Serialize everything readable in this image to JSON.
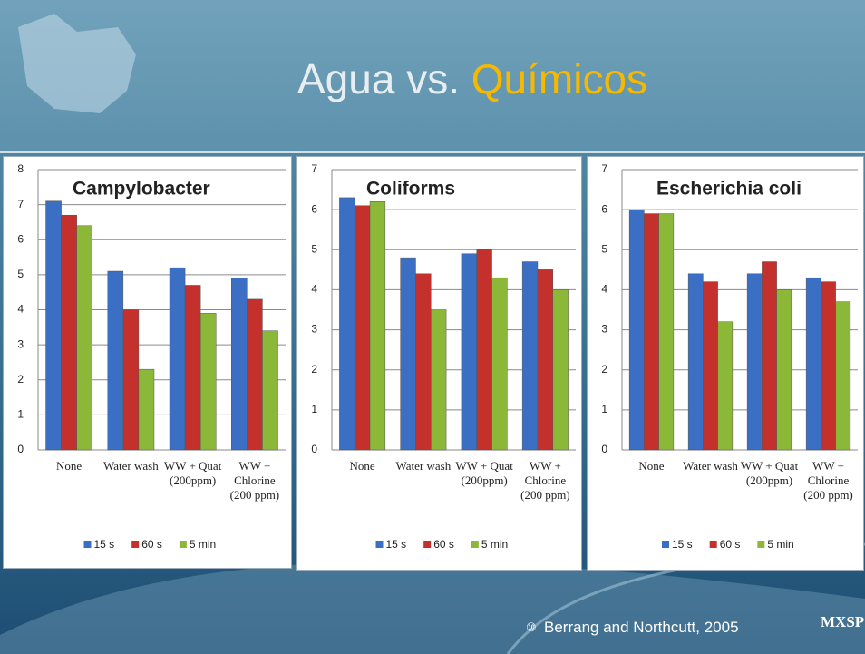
{
  "slide": {
    "title_part1": "Agua vs.",
    "title_part2": "Químicos",
    "bullet": "⑩",
    "footer": "Berrang and Northcutt, 2005",
    "logo": "MXSP"
  },
  "chart_data": [
    {
      "type": "bar",
      "title": "Campylobacter",
      "categories": [
        "None",
        "Water wash",
        "WW + Quat (200ppm)",
        "WW + Chlorine (200 ppm)"
      ],
      "series": [
        {
          "name": "15 s",
          "color": "#3a6fc4",
          "values": [
            7.1,
            5.1,
            5.2,
            4.9
          ]
        },
        {
          "name": "60 s",
          "color": "#c4302b",
          "values": [
            6.7,
            4.0,
            4.7,
            4.3
          ]
        },
        {
          "name": "5 min",
          "color": "#8cb83a",
          "values": [
            6.4,
            2.3,
            3.9,
            3.4
          ]
        }
      ],
      "ylim": [
        0,
        8
      ],
      "yticks": [
        0,
        1,
        2,
        3,
        4,
        5,
        6,
        7,
        8
      ],
      "grid": true
    },
    {
      "type": "bar",
      "title": "Coliforms",
      "categories": [
        "None",
        "Water wash",
        "WW + Quat (200ppm)",
        "WW + Chlorine (200 ppm)"
      ],
      "series": [
        {
          "name": "15 s",
          "color": "#3a6fc4",
          "values": [
            6.3,
            4.8,
            4.9,
            4.7
          ]
        },
        {
          "name": "60 s",
          "color": "#c4302b",
          "values": [
            6.1,
            4.4,
            5.0,
            4.5
          ]
        },
        {
          "name": "5 min",
          "color": "#8cb83a",
          "values": [
            6.2,
            3.5,
            4.3,
            4.0
          ]
        }
      ],
      "ylim": [
        0,
        7
      ],
      "yticks": [
        0,
        1,
        2,
        3,
        4,
        5,
        6,
        7
      ],
      "grid": true
    },
    {
      "type": "bar",
      "title": "Escherichia coli",
      "categories": [
        "None",
        "Water wash",
        "WW + Quat (200ppm)",
        "WW + Chlorine (200 ppm)"
      ],
      "series": [
        {
          "name": "15 s",
          "color": "#3a6fc4",
          "values": [
            6.0,
            4.4,
            4.4,
            4.3
          ]
        },
        {
          "name": "60 s",
          "color": "#c4302b",
          "values": [
            5.9,
            4.2,
            4.7,
            4.2
          ]
        },
        {
          "name": "5 min",
          "color": "#8cb83a",
          "values": [
            5.9,
            3.2,
            4.0,
            3.7
          ]
        }
      ],
      "ylim": [
        0,
        7
      ],
      "yticks": [
        0,
        1,
        2,
        3,
        4,
        5,
        6,
        7
      ],
      "grid": true
    }
  ]
}
